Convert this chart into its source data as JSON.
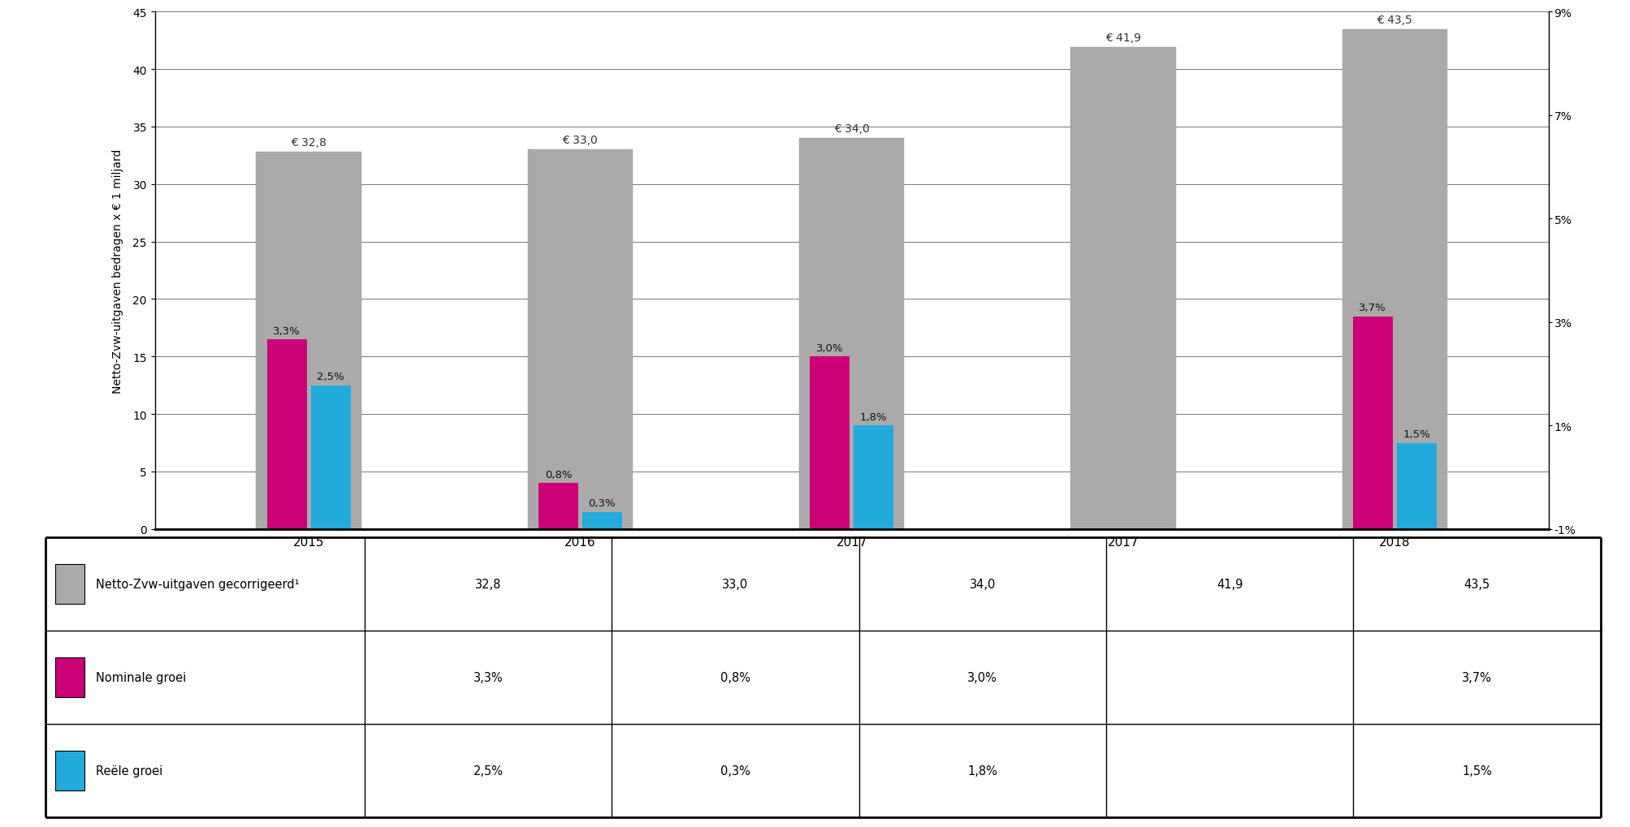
{
  "categories": [
    "2015",
    "2016",
    "2017",
    "2017",
    "2018"
  ],
  "gray_values": [
    32.8,
    33.0,
    34.0,
    41.9,
    43.5
  ],
  "gray_labels": [
    "€ 32,8",
    "€ 33,0",
    "€ 34,0",
    "€ 41,9",
    "€ 43,5"
  ],
  "nominal_pct": [
    3.3,
    0.8,
    3.0,
    null,
    3.7
  ],
  "real_pct": [
    2.5,
    0.3,
    1.8,
    null,
    1.5
  ],
  "nominal_labels": [
    "3,3%",
    "0,8%",
    "3,0%",
    null,
    "3,7%"
  ],
  "real_labels": [
    "2,5%",
    "0,3%",
    "1,8%",
    null,
    "1,5%"
  ],
  "gray_color": "#aaaaaa",
  "nominal_color": "#cc0077",
  "real_color": "#22aadd",
  "left_ylim": [
    0,
    45
  ],
  "left_yticks": [
    0,
    5,
    10,
    15,
    20,
    25,
    30,
    35,
    40,
    45
  ],
  "right_yticks_pct": [
    -1,
    1,
    3,
    5,
    7,
    9
  ],
  "right_yticklabels": [
    "-1%",
    "1%",
    "3%",
    "5%",
    "7%",
    "9%"
  ],
  "ylabel_left": "Netto-Zvw-uitgaven bedragen x € 1 miljard",
  "pct_scale": 5.0,
  "table_row1_label": "Netto-Zvw-uitgaven gecorrigeerd¹",
  "table_row2_label": "Nominale groei",
  "table_row3_label": "Reële groei",
  "table_row1_data": [
    "32,8",
    "33,0",
    "34,0",
    "41,9",
    "43,5"
  ],
  "table_row2_data": [
    "3,3%",
    "0,8%",
    "3,0%",
    "",
    "3,7%"
  ],
  "table_row3_data": [
    "2,5%",
    "0,3%",
    "1,8%",
    "",
    "1,5%"
  ]
}
